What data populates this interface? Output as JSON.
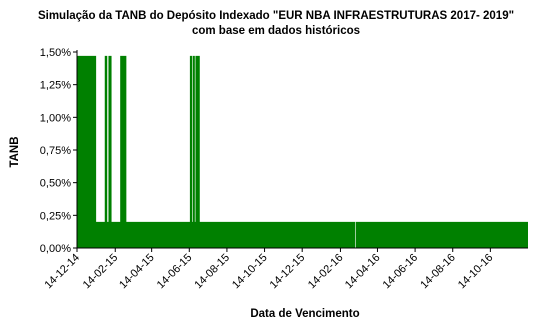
{
  "chart_data": {
    "type": "area",
    "title": [
      "Simulação da TANB do Depósito Indexado \"EUR NBA INFRAESTRUTURAS 2017- 2019\"",
      "com base em dados históricos"
    ],
    "y_label": "TANB",
    "x_label": "Data de Vencimento",
    "color": "#008000",
    "x": [
      "2014-12-14",
      "2015-01-14",
      "2015-01-14",
      "2015-01-28",
      "2015-01-28",
      "2015-02-01",
      "2015-02-01",
      "2015-02-03",
      "2015-02-03",
      "2015-02-08",
      "2015-02-08",
      "2015-02-22",
      "2015-02-22",
      "2015-03-04",
      "2015-03-04",
      "2015-06-15",
      "2015-06-15",
      "2015-06-19",
      "2015-06-19",
      "2015-06-20",
      "2015-06-20",
      "2015-06-23",
      "2015-06-23",
      "2015-06-24",
      "2015-06-24",
      "2015-07-01",
      "2015-07-01",
      "2016-03-09",
      "2016-03-09",
      "2016-03-10",
      "2016-03-10",
      "2016-12-14"
    ],
    "values": [
      1.47,
      1.47,
      0.2,
      0.2,
      1.47,
      1.47,
      0.2,
      0.2,
      1.47,
      1.47,
      0.2,
      0.2,
      1.47,
      1.47,
      0.2,
      0.2,
      1.47,
      1.47,
      0.2,
      0.2,
      1.47,
      1.47,
      0.2,
      0.2,
      1.47,
      1.47,
      0.2,
      0.2,
      0,
      0,
      0.2,
      0.2
    ],
    "xlim": [
      "2014-12-14",
      "2016-12-14"
    ],
    "xticks": [
      {
        "value": "2014-12-14",
        "label": "14-12-14"
      },
      {
        "value": "2015-02-14",
        "label": "14-02-15"
      },
      {
        "value": "2015-04-14",
        "label": "14-04-15"
      },
      {
        "value": "2015-06-14",
        "label": "14-06-15"
      },
      {
        "value": "2015-08-14",
        "label": "14-08-15"
      },
      {
        "value": "2015-10-14",
        "label": "14-10-15"
      },
      {
        "value": "2015-12-14",
        "label": "14-12-15"
      },
      {
        "value": "2016-02-14",
        "label": "14-02-16"
      },
      {
        "value": "2016-04-14",
        "label": "14-04-16"
      },
      {
        "value": "2016-06-14",
        "label": "14-06-16"
      },
      {
        "value": "2016-08-14",
        "label": "14-08-16"
      },
      {
        "value": "2016-10-14",
        "label": "14-10-16"
      }
    ],
    "ylim": [
      0,
      1.5
    ],
    "yticks": [
      {
        "value": 0,
        "label": "0,00%"
      },
      {
        "value": 0.25,
        "label": "0,25%"
      },
      {
        "value": 0.5,
        "label": "0,50%"
      },
      {
        "value": 0.75,
        "label": "0,75%"
      },
      {
        "value": 1,
        "label": "1,00%"
      },
      {
        "value": 1.25,
        "label": "1,25%"
      },
      {
        "value": 1.5,
        "label": "1,50%"
      }
    ]
  }
}
